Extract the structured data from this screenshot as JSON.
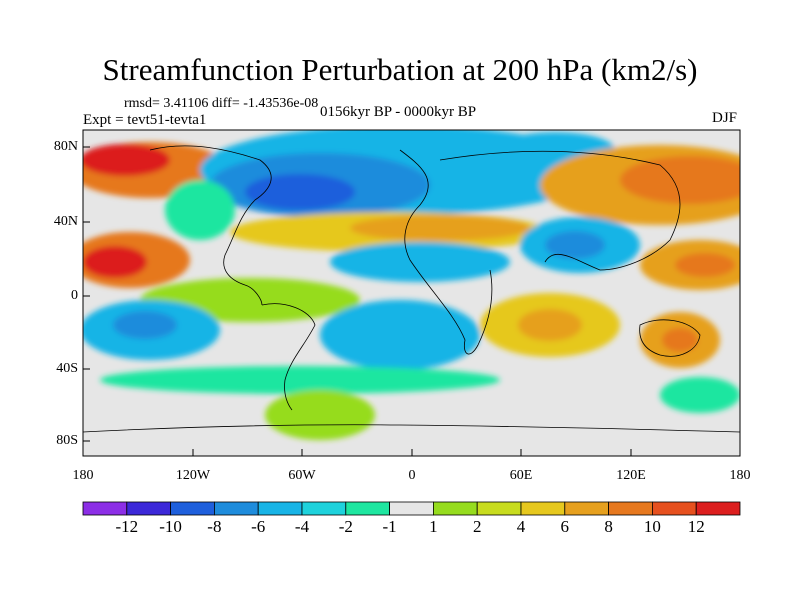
{
  "title": "Streamfunction Perturbation at 200 hPa (km2/s)",
  "stats": "rmsd= 3.41106 diff= -1.43536e-08",
  "experiment": "Expt = tevt51-tevta1",
  "period": "0156kyr BP - 0000kyr BP",
  "season": "DJF",
  "map": {
    "y_ticks": [
      "80N",
      "40N",
      "0",
      "40S",
      "80S"
    ],
    "x_ticks": [
      "180",
      "120W",
      "60W",
      "0",
      "60E",
      "120E",
      "180"
    ],
    "background_color": "#e6e6e6"
  },
  "colorbar": {
    "labels": [
      "-12",
      "-10",
      "-8",
      "-6",
      "-4",
      "-2",
      "-1",
      "1",
      "2",
      "4",
      "6",
      "8",
      "10",
      "12"
    ],
    "colors": [
      "#8c2ee6",
      "#3c28d8",
      "#1e5fdc",
      "#1e8cdc",
      "#18b4e6",
      "#1ed2dc",
      "#1ee6a0",
      "#e6e6e6",
      "#96dc1e",
      "#c8dc1e",
      "#e6c81e",
      "#e6a01e",
      "#e6781e",
      "#e6501e",
      "#dc1e1e"
    ]
  }
}
